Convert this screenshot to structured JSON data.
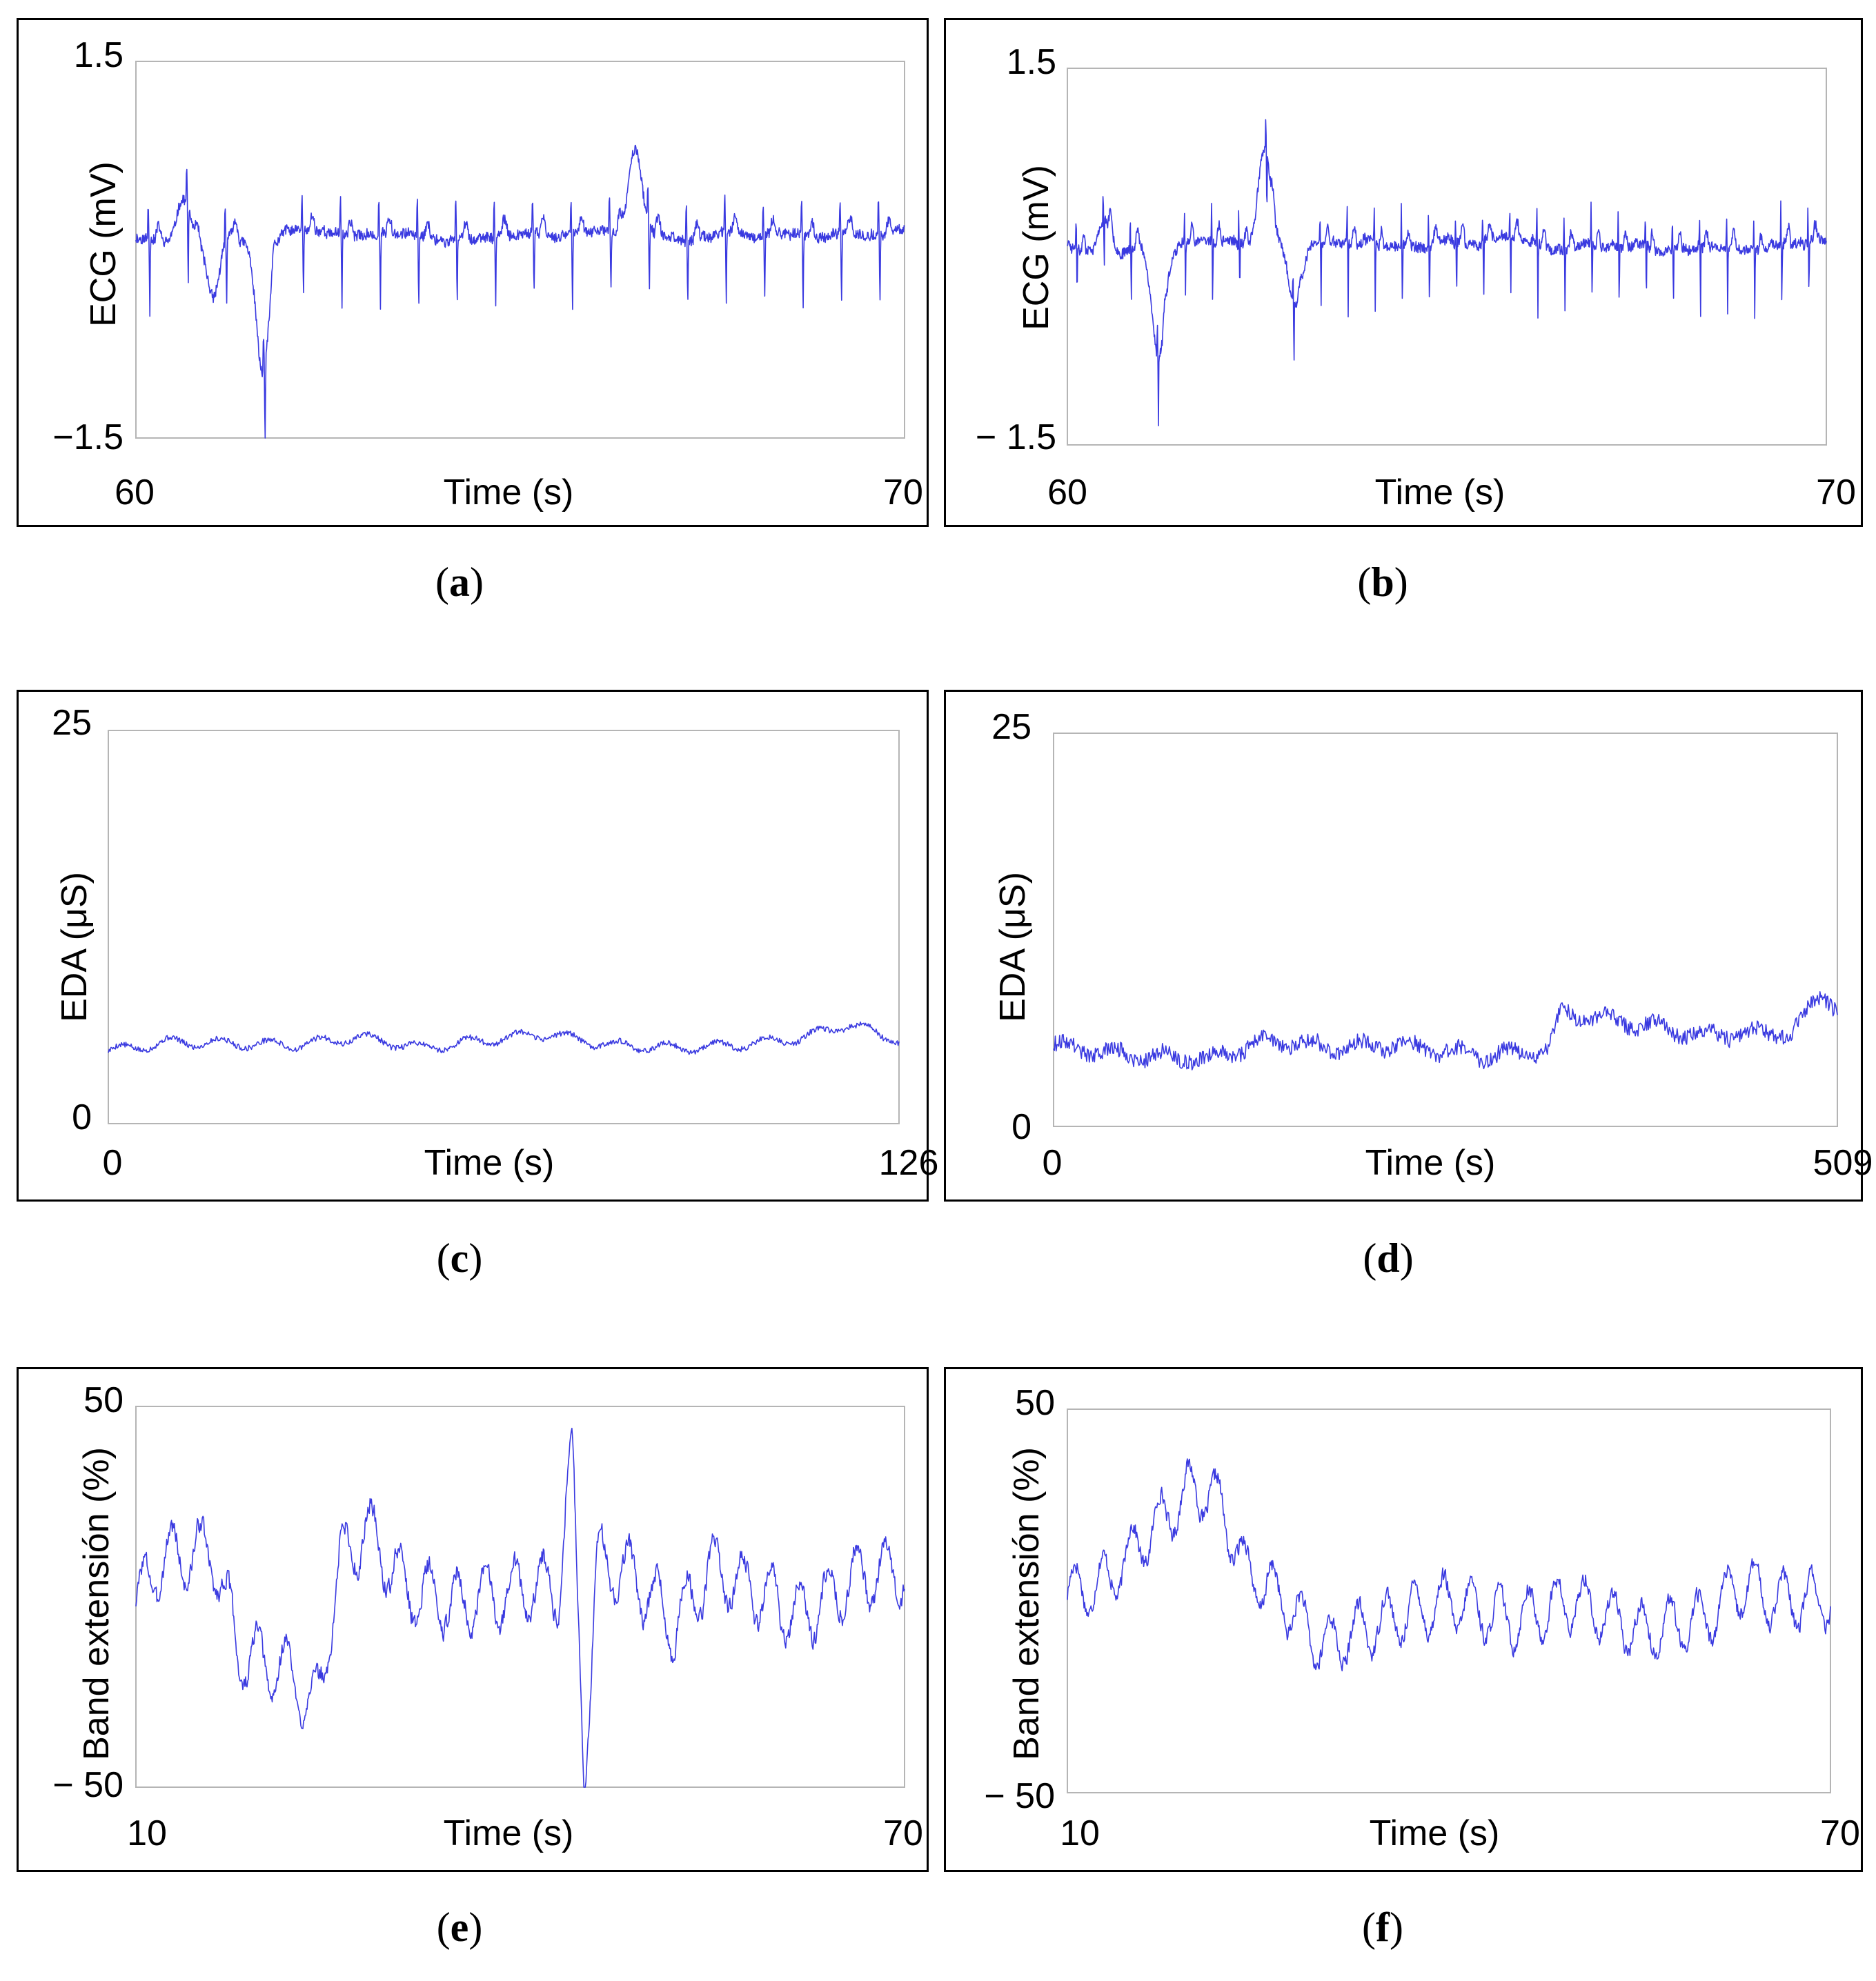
{
  "chart_data": [
    {
      "id": "a",
      "type": "line",
      "caption_label": "a",
      "ylabel": "ECG (mV)",
      "xlabel": "Time (s)",
      "y_top_label": "1.5",
      "y_bottom_label": "−1.5",
      "x_left_label": "60",
      "x_right_label": "70",
      "xlim": [
        60,
        70
      ],
      "ylim": [
        -1.5,
        1.5
      ],
      "line_color": "#3a3ae0",
      "series": [
        {
          "name": "ECG",
          "kind": "ecg",
          "baseline": 0.1,
          "beats": 20,
          "seed": 11,
          "r_peak": 0.35,
          "s_trough": -0.6,
          "events": [
            {
              "t": 0.62,
              "v": 0.35
            },
            {
              "t": 1.0,
              "v": -0.5
            },
            {
              "t": 1.65,
              "v": -1.1
            },
            {
              "t": 6.5,
              "v": 0.7
            }
          ]
        }
      ]
    },
    {
      "id": "b",
      "type": "line",
      "caption_label": "b",
      "ylabel": "ECG (mV)",
      "xlabel": "Time (s)",
      "y_top_label": "1.5",
      "y_bottom_label": "− 1.5",
      "x_left_label": "60",
      "x_right_label": "70",
      "xlim": [
        60,
        70
      ],
      "ylim": [
        -1.5,
        1.5
      ],
      "line_color": "#3a3ae0",
      "series": [
        {
          "name": "ECG",
          "kind": "ecg",
          "baseline": 0.1,
          "beats": 28,
          "seed": 23,
          "r_peak": 0.3,
          "s_trough": -0.55,
          "events": [
            {
              "t": 0.5,
              "v": 0.25
            },
            {
              "t": 1.2,
              "v": -0.9
            },
            {
              "t": 2.6,
              "v": 0.75
            },
            {
              "t": 3.0,
              "v": -0.5
            }
          ]
        }
      ]
    },
    {
      "id": "c",
      "type": "line",
      "caption_label": "c",
      "ylabel": "EDA (μS)",
      "xlabel": "Time (s)",
      "y_top_label": "25",
      "y_bottom_label": "0",
      "x_left_label": "0",
      "x_right_label": "126",
      "xlim": [
        0,
        126
      ],
      "ylim": [
        0,
        25
      ],
      "line_color": "#3a3ae0",
      "series": [
        {
          "name": "EDA",
          "kind": "eda",
          "seed": 5,
          "noise": 0.35,
          "wave": 0.5,
          "points": [
            [
              0,
              4.6
            ],
            [
              10,
              5.2
            ],
            [
              20,
              5.1
            ],
            [
              30,
              5.0
            ],
            [
              40,
              5.5
            ],
            [
              50,
              4.8
            ],
            [
              60,
              5.3
            ],
            [
              70,
              5.7
            ],
            [
              80,
              5.0
            ],
            [
              90,
              4.8
            ],
            [
              100,
              5.0
            ],
            [
              110,
              5.4
            ],
            [
              118,
              6.3
            ],
            [
              126,
              5.3
            ]
          ]
        }
      ]
    },
    {
      "id": "d",
      "type": "line",
      "caption_label": "d",
      "ylabel": "EDA (μS)",
      "xlabel": "Time (s)",
      "y_top_label": "25",
      "y_bottom_label": "0",
      "x_left_label": "0",
      "x_right_label": "509",
      "xlim": [
        0,
        509
      ],
      "ylim": [
        0,
        25
      ],
      "line_color": "#3a3ae0",
      "series": [
        {
          "name": "EDA",
          "kind": "eda",
          "seed": 9,
          "noise": 1.0,
          "wave": 0.6,
          "points": [
            [
              0,
              5.2
            ],
            [
              40,
              4.6
            ],
            [
              100,
              4.3
            ],
            [
              140,
              5.5
            ],
            [
              180,
              5.0
            ],
            [
              220,
              5.2
            ],
            [
              280,
              4.5
            ],
            [
              320,
              4.8
            ],
            [
              330,
              7.2
            ],
            [
              380,
              6.5
            ],
            [
              420,
              5.8
            ],
            [
              480,
              6.0
            ],
            [
              500,
              8.5
            ],
            [
              509,
              7.5
            ]
          ]
        }
      ]
    },
    {
      "id": "e",
      "type": "line",
      "caption_label": "e",
      "ylabel": "Band extensión (%)",
      "xlabel": "Time (s)",
      "y_top_label": "50",
      "y_bottom_label": "− 50",
      "x_left_label": "10",
      "x_right_label": "70",
      "xlim": [
        10,
        70
      ],
      "ylim": [
        -50,
        50
      ],
      "line_color": "#3a3ae0",
      "series": [
        {
          "name": "Band",
          "kind": "resp",
          "seed": 3,
          "noise": 14,
          "points": [
            [
              10,
              -2
            ],
            [
              12,
              10
            ],
            [
              16,
              12
            ],
            [
              18,
              -15
            ],
            [
              22,
              -20
            ],
            [
              24,
              -30
            ],
            [
              26,
              10
            ],
            [
              28,
              18
            ],
            [
              31,
              2
            ],
            [
              35,
              -2
            ],
            [
              40,
              2
            ],
            [
              43,
              3
            ],
            [
              44,
              40
            ],
            [
              45,
              -48
            ],
            [
              46,
              10
            ],
            [
              49,
              5
            ],
            [
              52,
              -8
            ],
            [
              55,
              8
            ],
            [
              58,
              2
            ],
            [
              62,
              -5
            ],
            [
              66,
              5
            ],
            [
              70,
              7
            ]
          ]
        }
      ]
    },
    {
      "id": "f",
      "type": "line",
      "caption_label": "f",
      "ylabel": "Band extensión (%)",
      "xlabel": "Time (s)",
      "y_top_label": "50",
      "y_bottom_label": "− 50",
      "x_left_label": "10",
      "x_right_label": "70",
      "xlim": [
        10,
        70
      ],
      "ylim": [
        -50,
        50
      ],
      "line_color": "#3a3ae0",
      "series": [
        {
          "name": "Band",
          "kind": "resp",
          "seed": 17,
          "noise": 12,
          "points": [
            [
              10,
              2
            ],
            [
              13,
              5
            ],
            [
              17,
              20
            ],
            [
              20,
              30
            ],
            [
              22,
              25
            ],
            [
              24,
              8
            ],
            [
              27,
              0
            ],
            [
              30,
              -12
            ],
            [
              35,
              -5
            ],
            [
              40,
              0
            ],
            [
              45,
              -5
            ],
            [
              50,
              0
            ],
            [
              55,
              -8
            ],
            [
              60,
              -5
            ],
            [
              63,
              4
            ],
            [
              66,
              0
            ],
            [
              70,
              0
            ]
          ]
        }
      ]
    }
  ]
}
